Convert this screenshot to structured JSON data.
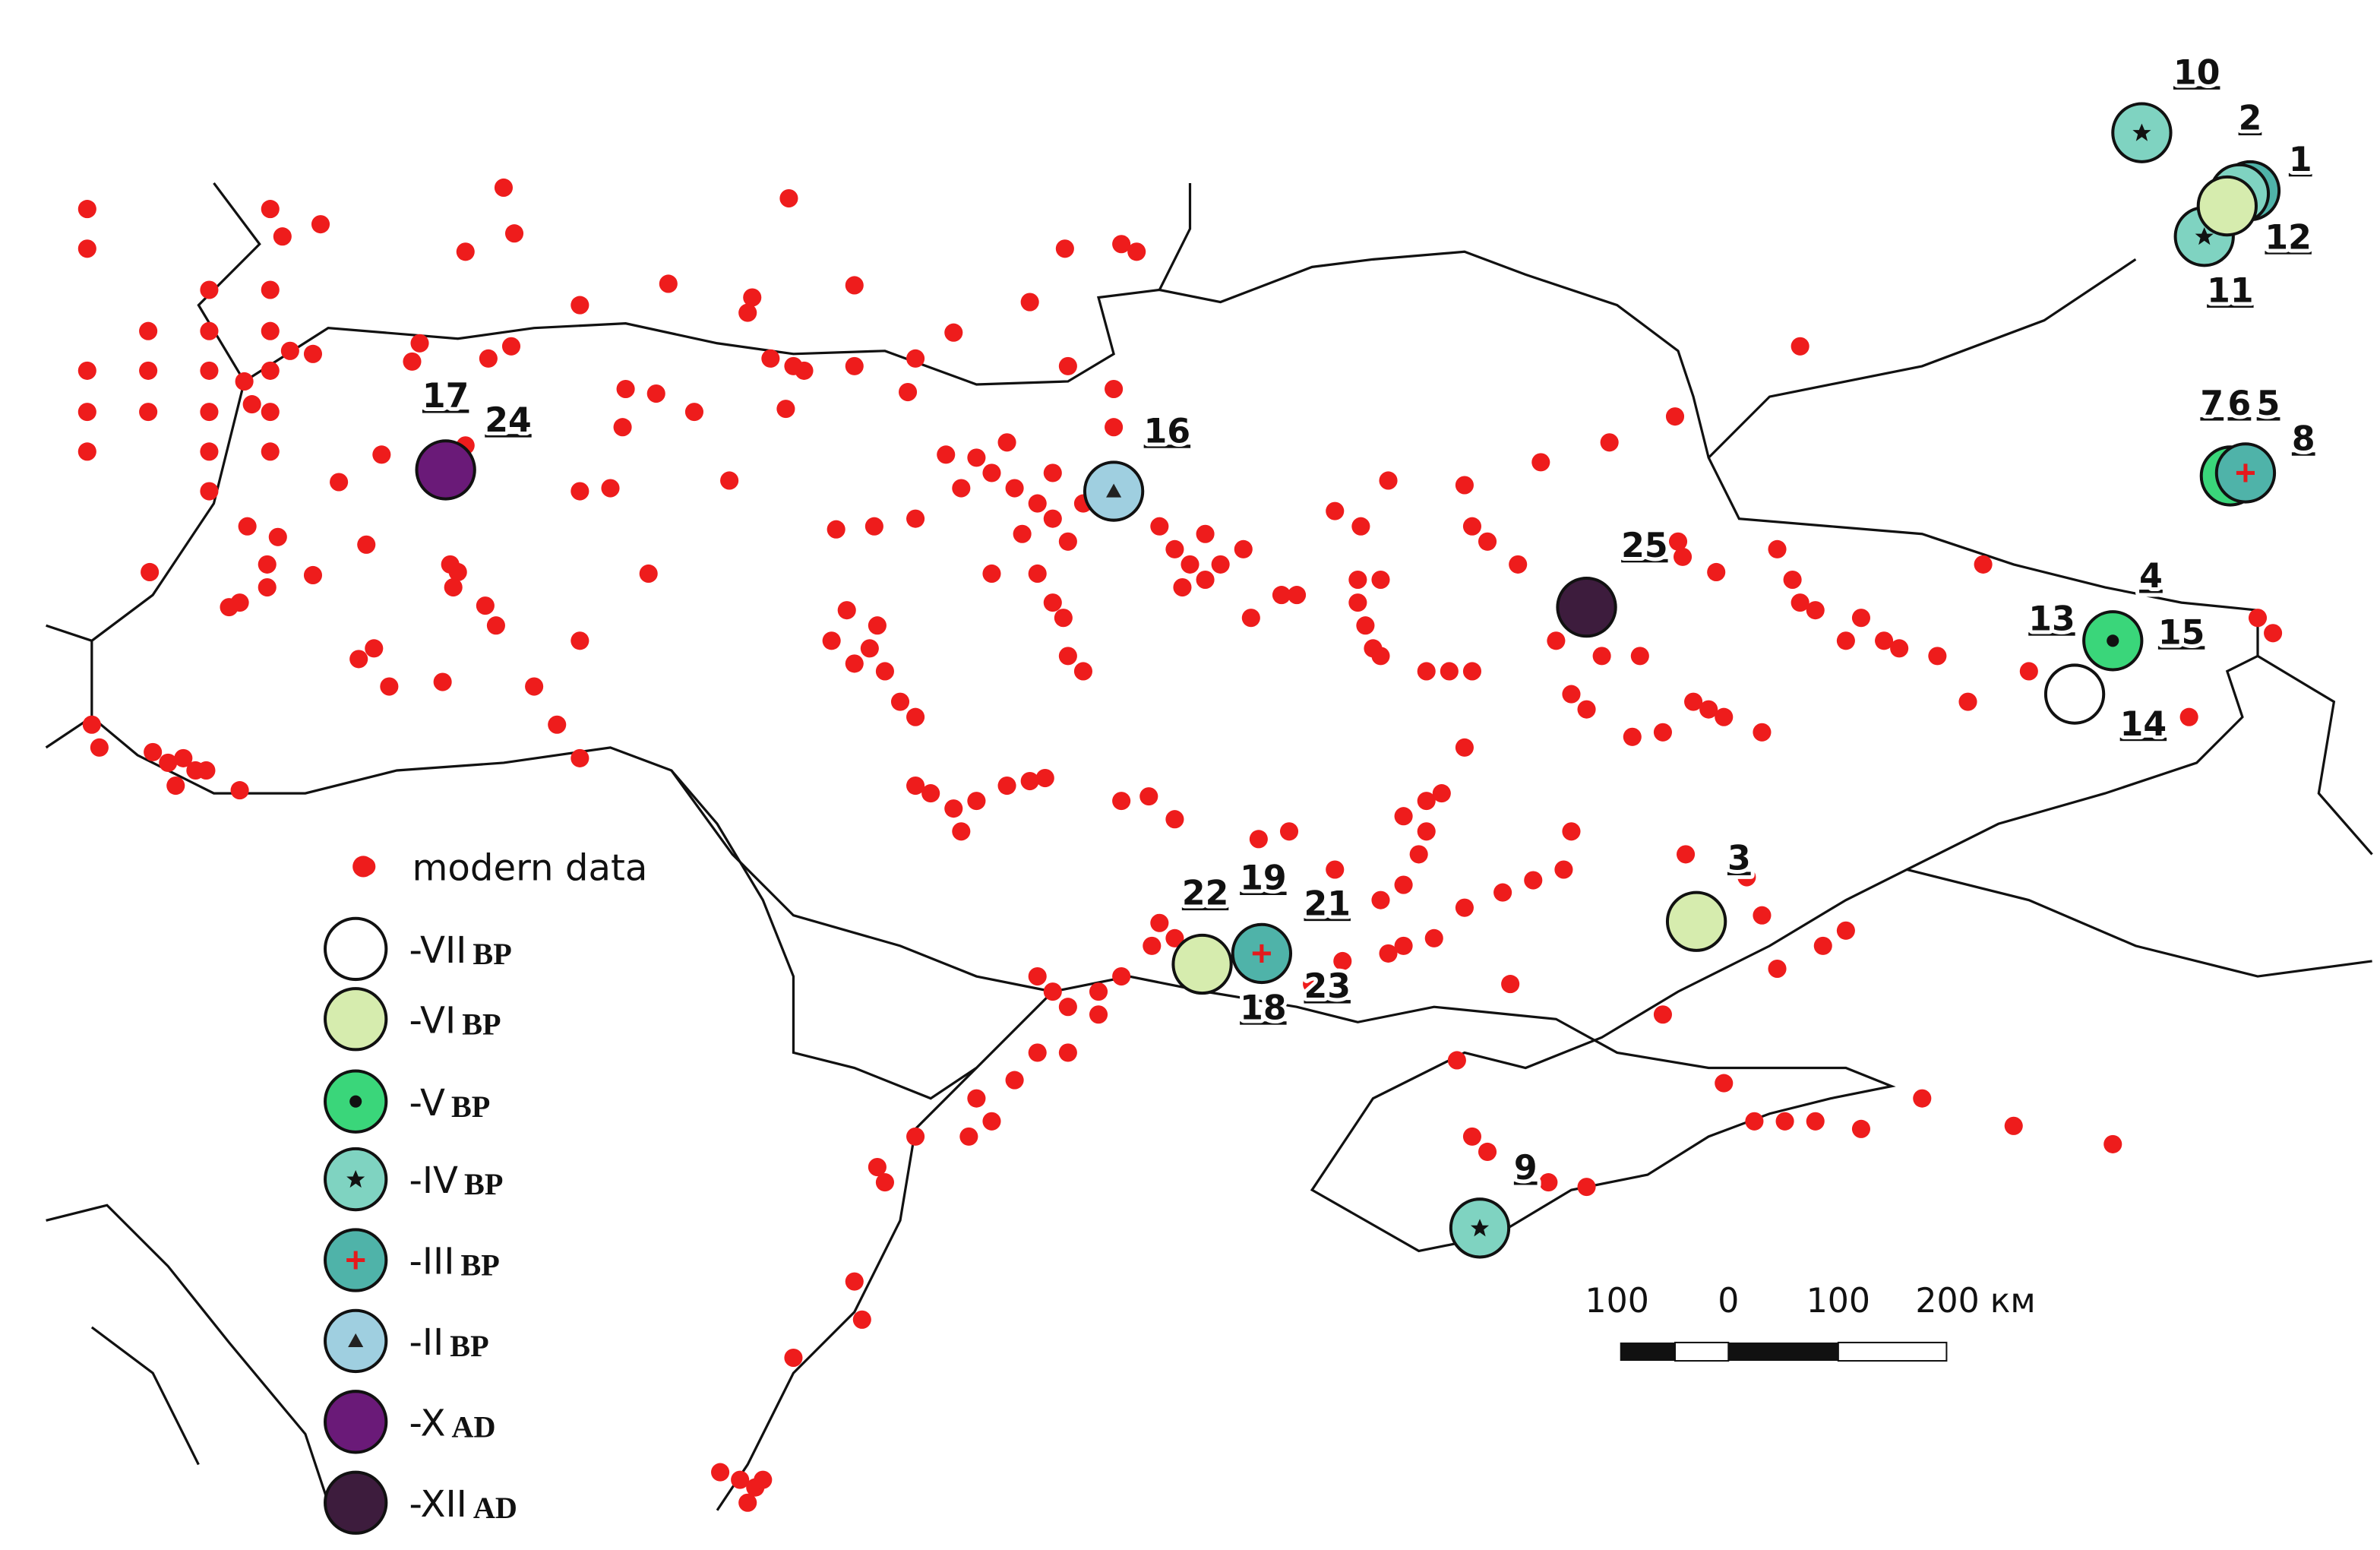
{
  "legend": [
    {
      "label": "modern data"
    },
    {
      "label": "-VII",
      "suffix": "BP"
    },
    {
      "label": "-VI",
      "suffix": "BP"
    },
    {
      "label": "-V",
      "suffix": "BP"
    },
    {
      "label": "-IV",
      "suffix": "BP"
    },
    {
      "label": "-III",
      "suffix": "BP"
    },
    {
      "label": "-II",
      "suffix": "BP"
    },
    {
      "label": "-X",
      "suffix": "AD"
    },
    {
      "label": "-XII",
      "suffix": "AD"
    }
  ],
  "sites": [
    {
      "label": "1"
    },
    {
      "label": "2"
    },
    {
      "label": "3"
    },
    {
      "label": "4"
    },
    {
      "label": "5"
    },
    {
      "label": "6"
    },
    {
      "label": "7"
    },
    {
      "label": "8"
    },
    {
      "label": "9"
    },
    {
      "label": "10"
    },
    {
      "label": "11"
    },
    {
      "label": "12"
    },
    {
      "label": "13"
    },
    {
      "label": "14"
    },
    {
      "label": "15"
    },
    {
      "label": "16"
    },
    {
      "label": "17"
    },
    {
      "label": "18"
    },
    {
      "label": "19"
    },
    {
      "label": "21"
    },
    {
      "label": "22"
    },
    {
      "label": "23"
    },
    {
      "label": "24"
    },
    {
      "label": "25"
    }
  ],
  "scale_bar": {
    "labels": [
      "100",
      "0",
      "100",
      "200 км"
    ]
  }
}
